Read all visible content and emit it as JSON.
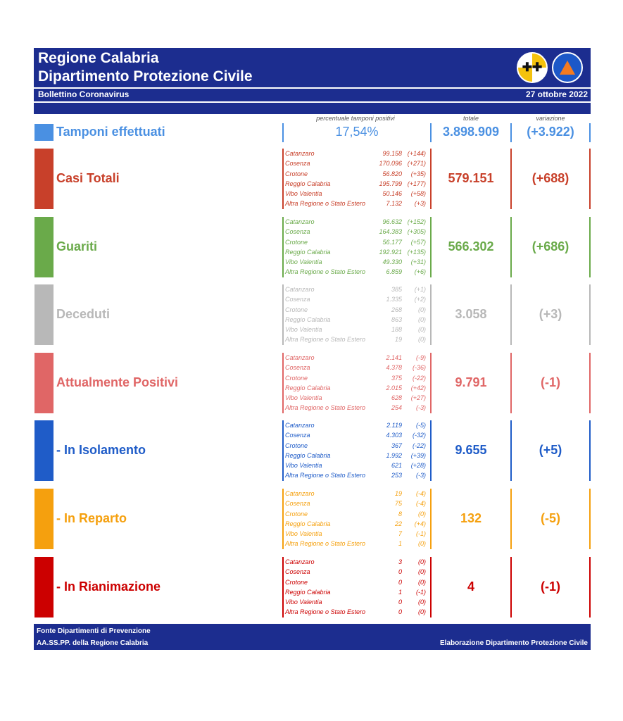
{
  "header": {
    "title1": "Regione Calabria",
    "title2": "Dipartimento Protezione Civile",
    "subtitle": "Bollettino Coronavirus",
    "date": "27 ottobre 2022"
  },
  "col_headers": {
    "positivity": "percentuale tamponi positivi",
    "total": "totale",
    "variation": "variazione"
  },
  "tamponi": {
    "label": "Tamponi effettuati",
    "positivity": "17,54%",
    "total": "3.898.909",
    "variation": "(+3.922)",
    "color": "#4a90e2"
  },
  "categories": [
    {
      "label": "Casi Totali",
      "color": "#c8402a",
      "total": "579.151",
      "variation": "(+688)",
      "regions": [
        {
          "name": "Catanzaro",
          "value": "99.158",
          "delta": "(+144)"
        },
        {
          "name": "Cosenza",
          "value": "170.096",
          "delta": "(+271)"
        },
        {
          "name": "Crotone",
          "value": "56.820",
          "delta": "(+35)"
        },
        {
          "name": "Reggio Calabria",
          "value": "195.799",
          "delta": "(+177)"
        },
        {
          "name": "Vibo Valentia",
          "value": "50.146",
          "delta": "(+58)"
        },
        {
          "name": "Altra Regione o Stato Estero",
          "value": "7.132",
          "delta": "(+3)"
        }
      ]
    },
    {
      "label": "Guariti",
      "color": "#6aaa4a",
      "total": "566.302",
      "variation": "(+686)",
      "regions": [
        {
          "name": "Catanzaro",
          "value": "96.632",
          "delta": "(+152)"
        },
        {
          "name": "Cosenza",
          "value": "164.383",
          "delta": "(+305)"
        },
        {
          "name": "Crotone",
          "value": "56.177",
          "delta": "(+57)"
        },
        {
          "name": "Reggio Calabria",
          "value": "192.921",
          "delta": "(+135)"
        },
        {
          "name": "Vibo Valentia",
          "value": "49.330",
          "delta": "(+31)"
        },
        {
          "name": "Altra Regione o Stato Estero",
          "value": "6.859",
          "delta": "(+6)"
        }
      ]
    },
    {
      "label": "Deceduti",
      "color": "#b8b8b8",
      "total": "3.058",
      "variation": "(+3)",
      "regions": [
        {
          "name": "Catanzaro",
          "value": "385",
          "delta": "(+1)"
        },
        {
          "name": "Cosenza",
          "value": "1.335",
          "delta": "(+2)"
        },
        {
          "name": "Crotone",
          "value": "268",
          "delta": "(0)"
        },
        {
          "name": "Reggio Calabria",
          "value": "863",
          "delta": "(0)"
        },
        {
          "name": "Vibo Valentia",
          "value": "188",
          "delta": "(0)"
        },
        {
          "name": "Altra Regione o Stato Estero",
          "value": "19",
          "delta": "(0)"
        }
      ]
    },
    {
      "label": "Attualmente Positivi",
      "color": "#e06666",
      "total": "9.791",
      "variation": "(-1)",
      "regions": [
        {
          "name": "Catanzaro",
          "value": "2.141",
          "delta": "(-9)"
        },
        {
          "name": "Cosenza",
          "value": "4.378",
          "delta": "(-36)"
        },
        {
          "name": "Crotone",
          "value": "375",
          "delta": "(-22)"
        },
        {
          "name": "Reggio Calabria",
          "value": "2.015",
          "delta": "(+42)"
        },
        {
          "name": "Vibo Valentia",
          "value": "628",
          "delta": "(+27)"
        },
        {
          "name": "Altra Regione o Stato Estero",
          "value": "254",
          "delta": "(-3)"
        }
      ]
    },
    {
      "label": " - In Isolamento",
      "color": "#1f5cc8",
      "total": "9.655",
      "variation": "(+5)",
      "regions": [
        {
          "name": "Catanzaro",
          "value": "2.119",
          "delta": "(-5)"
        },
        {
          "name": "Cosenza",
          "value": "4.303",
          "delta": "(-32)"
        },
        {
          "name": "Crotone",
          "value": "367",
          "delta": "(-22)"
        },
        {
          "name": "Reggio Calabria",
          "value": "1.992",
          "delta": "(+39)"
        },
        {
          "name": "Vibo Valentia",
          "value": "621",
          "delta": "(+28)"
        },
        {
          "name": "Altra Regione o Stato Estero",
          "value": "253",
          "delta": "(-3)"
        }
      ]
    },
    {
      "label": " - In Reparto",
      "color": "#f5a00e",
      "total": "132",
      "variation": "(-5)",
      "regions": [
        {
          "name": "Catanzaro",
          "value": "19",
          "delta": "(-4)"
        },
        {
          "name": "Cosenza",
          "value": "75",
          "delta": "(-4)"
        },
        {
          "name": "Crotone",
          "value": "8",
          "delta": "(0)"
        },
        {
          "name": "Reggio Calabria",
          "value": "22",
          "delta": "(+4)"
        },
        {
          "name": "Vibo Valentia",
          "value": "7",
          "delta": "(-1)"
        },
        {
          "name": "Altra Regione o Stato Estero",
          "value": "1",
          "delta": "(0)"
        }
      ]
    },
    {
      "label": " - In Rianimazione",
      "color": "#cc0000",
      "total": "4",
      "variation": "(-1)",
      "regions": [
        {
          "name": "Catanzaro",
          "value": "3",
          "delta": "(0)"
        },
        {
          "name": "Cosenza",
          "value": "0",
          "delta": "(0)"
        },
        {
          "name": "Crotone",
          "value": "0",
          "delta": "(0)"
        },
        {
          "name": "Reggio Calabria",
          "value": "1",
          "delta": "(-1)"
        },
        {
          "name": "Vibo Valentia",
          "value": "0",
          "delta": "(0)"
        },
        {
          "name": "Altra Regione o Stato Estero",
          "value": "0",
          "delta": "(0)"
        }
      ]
    }
  ],
  "footer": {
    "source1": "Fonte Dipartimenti di Prevenzione",
    "source2": "AA.SS.PP.  della Regione Calabria",
    "credit": "Elaborazione Dipartimento Protezione Civile"
  }
}
